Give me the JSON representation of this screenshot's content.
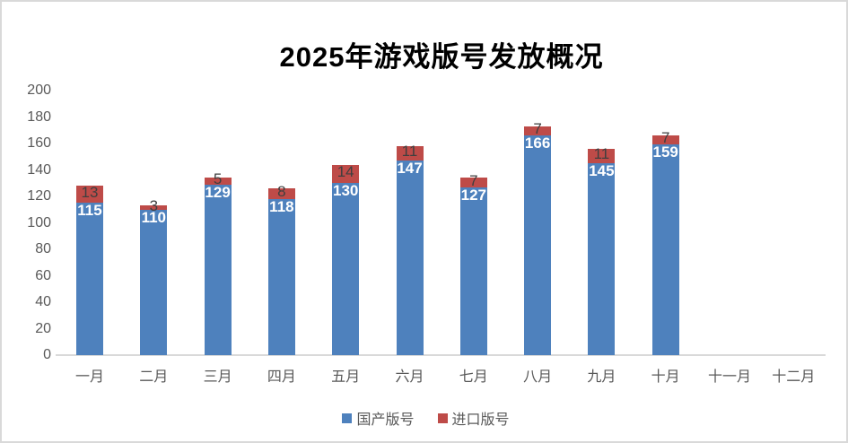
{
  "chart_data": {
    "type": "bar",
    "stacked": true,
    "title": "2025年游戏版号发放概况",
    "categories": [
      "一月",
      "二月",
      "三月",
      "四月",
      "五月",
      "六月",
      "七月",
      "八月",
      "九月",
      "十月",
      "十一月",
      "十二月"
    ],
    "series": [
      {
        "name": "国产版号",
        "color": "#4E81BD",
        "label_color": "#FFFFFF",
        "values": [
          115,
          110,
          129,
          118,
          130,
          147,
          127,
          166,
          145,
          159,
          null,
          null
        ]
      },
      {
        "name": "进口版号",
        "color": "#BE4B48",
        "label_color": "#3F3F3F",
        "values": [
          13,
          3,
          5,
          8,
          14,
          11,
          7,
          7,
          11,
          7,
          null,
          null
        ]
      }
    ],
    "ylim": [
      0,
      200
    ],
    "yticks": [
      0,
      20,
      40,
      60,
      80,
      100,
      120,
      140,
      160,
      180,
      200
    ],
    "grid": false,
    "data_labels": true,
    "legend_position": "bottom"
  },
  "colors": {
    "background": "#FFFFFF",
    "border": "#D9D9D9",
    "axis_line": "#D9D9D9",
    "axis_text": "#595959",
    "title_text": "#000000"
  }
}
